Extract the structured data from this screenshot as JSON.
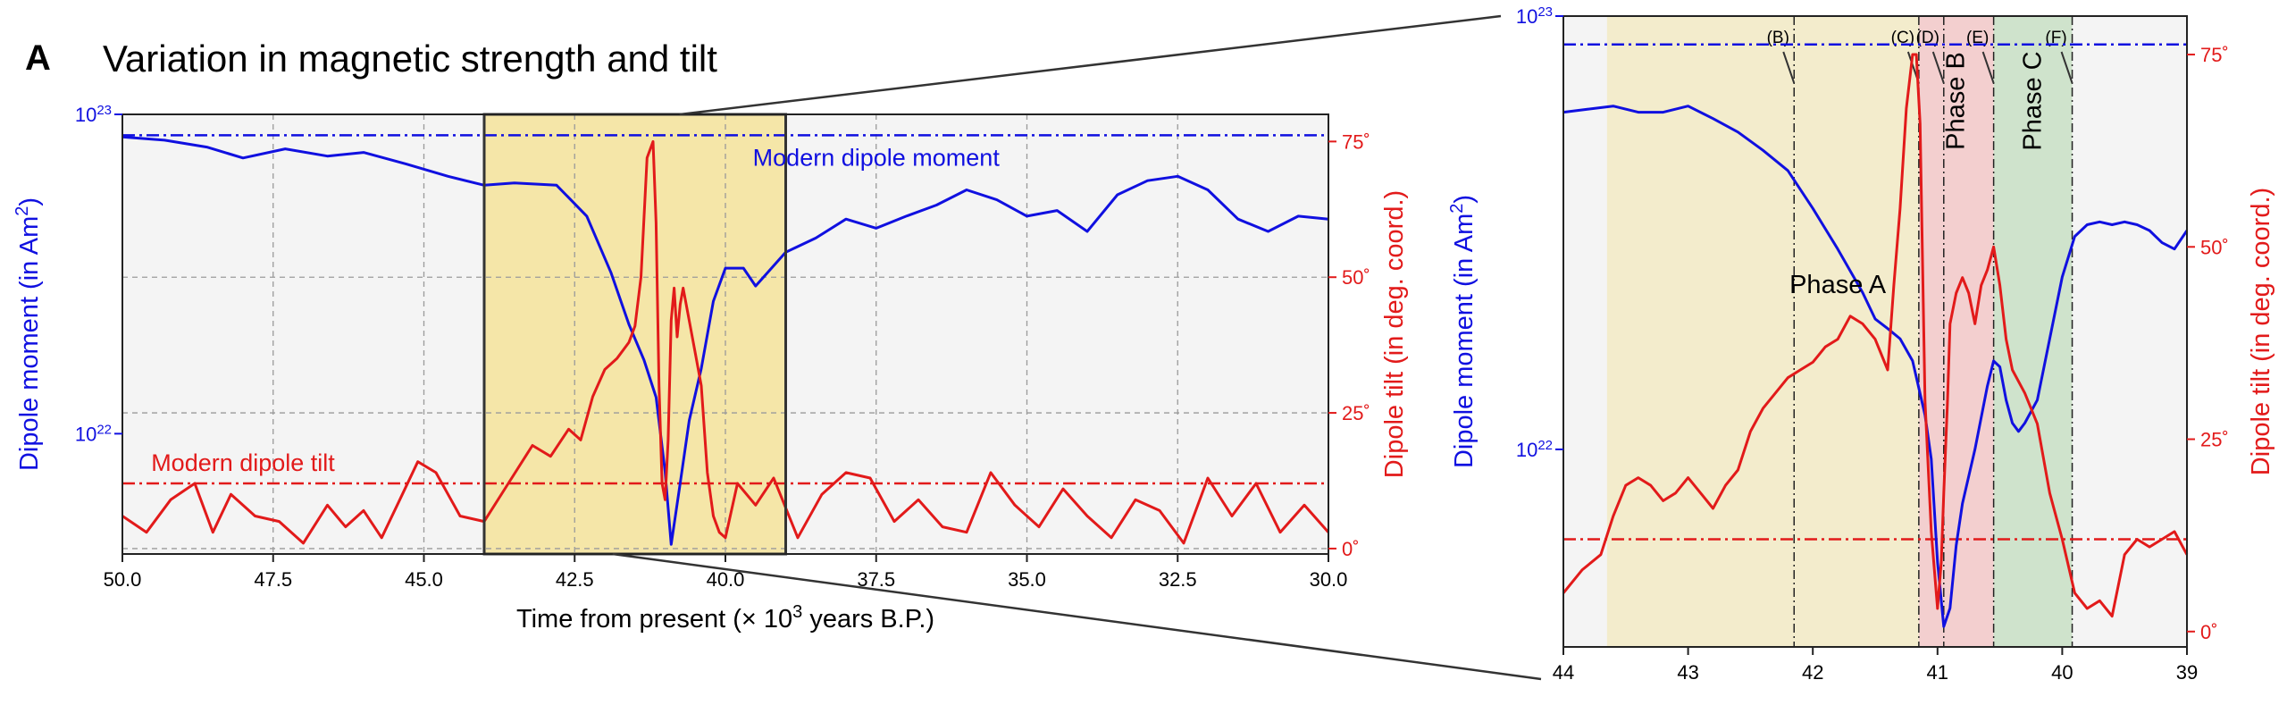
{
  "figure": {
    "panel_letter": "A",
    "title": "Variation in magnetic strength and tilt"
  },
  "colors": {
    "moment": "#1010e0",
    "tilt": "#e21a1a",
    "grid": "#9a9a9a",
    "background": "#f4f4f4",
    "highlight": "#f5e6a8",
    "phase_a": "#f3eccc",
    "phase_b": "#f3cfcf",
    "phase_c": "#cfe3cc"
  },
  "chart_data": [
    {
      "type": "line",
      "panel": "main",
      "xlabel": "Time from present (× 10",
      "xlabel_sup": "3",
      "xlabel_rest": " years B.P.)",
      "xlim": [
        50.0,
        30.0
      ],
      "xticks": [
        "50.0",
        "47.5",
        "45.0",
        "42.5",
        "40.0",
        "37.5",
        "35.0",
        "32.5",
        "30.0"
      ],
      "y_left": {
        "label": "Dipole moment (in Am",
        "label_sup": "2",
        "label_rest": ")",
        "scale": "log",
        "lim": [
          4.2e+21,
          1e+23
        ],
        "ticks": [
          {
            "base": "10",
            "exp": "22"
          },
          {
            "base": "10",
            "exp": "23"
          }
        ]
      },
      "y_right": {
        "label": "Dipole tilt (in deg. coord.)",
        "lim": [
          -1,
          80
        ],
        "ticks": [
          "0˚",
          "25˚",
          "50˚",
          "75˚"
        ]
      },
      "highlight_region": [
        44.0,
        39.0
      ],
      "annotations": [
        {
          "text": "Modern dipole moment",
          "x": 37.5,
          "series": "moment"
        },
        {
          "text": "Modern dipole tilt",
          "x": 48.0,
          "series": "tilt"
        }
      ],
      "series": [
        {
          "kind": "moment",
          "reference": 8.6e+22,
          "x": [
            50.0,
            49.3,
            48.6,
            48.0,
            47.3,
            46.6,
            46.0,
            45.3,
            44.6,
            44.0,
            43.5,
            42.8,
            42.3,
            41.9,
            41.6,
            41.35,
            41.15,
            41.0,
            40.9,
            40.75,
            40.6,
            40.4,
            40.2,
            40.0,
            39.7,
            39.5,
            39.0,
            38.5,
            38.0,
            37.5,
            37.0,
            36.5,
            36.0,
            35.5,
            35.0,
            34.5,
            34.0,
            33.5,
            33.0,
            32.5,
            32.0,
            31.5,
            31.0,
            30.5,
            30.0
          ],
          "values": [
            8.5e+22,
            8.3e+22,
            7.9e+22,
            7.3e+22,
            7.8e+22,
            7.4e+22,
            7.6e+22,
            7e+22,
            6.4e+22,
            6e+22,
            6.1e+22,
            6e+22,
            4.8e+22,
            3.2e+22,
            2.2e+22,
            1.7e+22,
            1.3e+22,
            7.6e+21,
            4.5e+21,
            7e+21,
            1.1e+22,
            1.6e+22,
            2.6e+22,
            3.3e+22,
            3.3e+22,
            2.9e+22,
            3.7e+22,
            4.1e+22,
            4.7e+22,
            4.4e+22,
            4.8e+22,
            5.2e+22,
            5.8e+22,
            5.4e+22,
            4.8e+22,
            5e+22,
            4.3e+22,
            5.6e+22,
            6.2e+22,
            6.4e+22,
            5.8e+22,
            4.7e+22,
            4.3e+22,
            4.8e+22,
            4.7e+22
          ]
        },
        {
          "kind": "tilt",
          "reference": 12,
          "x": [
            50.0,
            49.6,
            49.2,
            48.8,
            48.5,
            48.2,
            47.8,
            47.4,
            47.0,
            46.6,
            46.3,
            46.0,
            45.7,
            45.4,
            45.1,
            44.8,
            44.4,
            44.0,
            43.6,
            43.2,
            42.9,
            42.6,
            42.4,
            42.2,
            42.0,
            41.8,
            41.6,
            41.5,
            41.4,
            41.3,
            41.2,
            41.15,
            41.1,
            41.05,
            41.0,
            40.95,
            40.9,
            40.85,
            40.8,
            40.75,
            40.7,
            40.6,
            40.5,
            40.4,
            40.3,
            40.2,
            40.1,
            40.0,
            39.8,
            39.5,
            39.2,
            38.8,
            38.4,
            38.0,
            37.6,
            37.2,
            36.8,
            36.4,
            36.0,
            35.6,
            35.2,
            34.8,
            34.4,
            34.0,
            33.6,
            33.2,
            32.8,
            32.4,
            32.0,
            31.6,
            31.2,
            30.8,
            30.4,
            30.0
          ],
          "values": [
            6,
            3,
            9,
            12,
            3,
            10,
            6,
            5,
            1,
            8,
            4,
            7,
            2,
            9,
            16,
            14,
            6,
            5,
            12,
            19,
            17,
            22,
            20,
            28,
            33,
            35,
            38,
            41,
            50,
            72,
            75,
            60,
            30,
            12,
            9,
            20,
            42,
            48,
            39,
            45,
            48,
            42,
            36,
            30,
            14,
            6,
            3,
            2,
            12,
            8,
            13,
            2,
            10,
            14,
            13,
            5,
            9,
            4,
            3,
            14,
            8,
            4,
            11,
            6,
            2,
            9,
            7,
            1,
            13,
            6,
            12,
            3,
            8,
            3
          ]
        }
      ]
    },
    {
      "type": "line",
      "panel": "zoom",
      "xlim": [
        44,
        39
      ],
      "xticks": [
        "44",
        "43",
        "42",
        "41",
        "40",
        "39"
      ],
      "y_left": {
        "label": "Dipole moment (in Am",
        "label_sup": "2",
        "label_rest": ")",
        "scale": "log",
        "lim": [
          3.5e+21,
          1e+23
        ],
        "ticks": [
          {
            "base": "10",
            "exp": "22"
          },
          {
            "base": "10",
            "exp": "23"
          }
        ]
      },
      "y_right": {
        "label": "Dipole tilt (in deg. coord.)",
        "lim": [
          -2,
          80
        ],
        "ticks": [
          "0˚",
          "25˚",
          "50˚",
          "75˚"
        ]
      },
      "phases": [
        {
          "label": "Phase A",
          "from": 43.65,
          "to": 41.15,
          "color_key": "phase_a",
          "vertical": false
        },
        {
          "label": "Phase B",
          "from": 41.15,
          "to": 40.55,
          "color_key": "phase_b",
          "vertical": true
        },
        {
          "label": "Phase C",
          "from": 40.55,
          "to": 39.92,
          "color_key": "phase_c",
          "vertical": true
        }
      ],
      "markers": [
        {
          "label": "(B)",
          "x": 42.15
        },
        {
          "label": "(C)",
          "x": 41.15
        },
        {
          "label": "(D)",
          "x": 40.95
        },
        {
          "label": "(E)",
          "x": 40.55
        },
        {
          "label": "(F)",
          "x": 39.92
        }
      ],
      "series": [
        {
          "kind": "moment",
          "reference": 8.6e+22,
          "x": [
            44.0,
            43.8,
            43.6,
            43.4,
            43.2,
            43.0,
            42.8,
            42.6,
            42.4,
            42.2,
            42.0,
            41.8,
            41.6,
            41.5,
            41.4,
            41.3,
            41.2,
            41.1,
            41.05,
            41.0,
            40.95,
            40.9,
            40.85,
            40.8,
            40.7,
            40.6,
            40.55,
            40.5,
            40.45,
            40.4,
            40.35,
            40.3,
            40.2,
            40.1,
            40.0,
            39.9,
            39.8,
            39.7,
            39.6,
            39.5,
            39.4,
            39.3,
            39.2,
            39.1,
            39.0
          ],
          "values": [
            6e+22,
            6.1e+22,
            6.2e+22,
            6e+22,
            6e+22,
            6.2e+22,
            5.8e+22,
            5.4e+22,
            4.9e+22,
            4.4e+22,
            3.6e+22,
            2.9e+22,
            2.3e+22,
            2e+22,
            1.9e+22,
            1.8e+22,
            1.6e+22,
            1.2e+22,
            9.5e+21,
            5.5e+21,
            3.9e+21,
            4.3e+21,
            6e+21,
            7.5e+21,
            1e+22,
            1.4e+22,
            1.6e+22,
            1.55e+22,
            1.3e+22,
            1.15e+22,
            1.1e+22,
            1.15e+22,
            1.3e+22,
            1.8e+22,
            2.5e+22,
            3.1e+22,
            3.3e+22,
            3.35e+22,
            3.3e+22,
            3.35e+22,
            3.3e+22,
            3.2e+22,
            3e+22,
            2.9e+22,
            3.2e+22
          ]
        },
        {
          "kind": "tilt",
          "reference": 12,
          "x": [
            44.0,
            43.85,
            43.7,
            43.6,
            43.5,
            43.4,
            43.3,
            43.2,
            43.1,
            43.0,
            42.9,
            42.8,
            42.7,
            42.6,
            42.5,
            42.4,
            42.3,
            42.2,
            42.1,
            42.0,
            41.9,
            41.8,
            41.7,
            41.6,
            41.5,
            41.4,
            41.35,
            41.3,
            41.25,
            41.2,
            41.17,
            41.14,
            41.1,
            41.05,
            41.0,
            40.97,
            40.95,
            40.92,
            40.9,
            40.85,
            40.8,
            40.75,
            40.7,
            40.65,
            40.6,
            40.55,
            40.5,
            40.45,
            40.4,
            40.3,
            40.2,
            40.1,
            40.0,
            39.9,
            39.8,
            39.7,
            39.6,
            39.5,
            39.4,
            39.3,
            39.2,
            39.1,
            39.0
          ],
          "values": [
            5,
            8,
            10,
            15,
            19,
            20,
            19,
            17,
            18,
            20,
            18,
            16,
            19,
            21,
            26,
            29,
            31,
            33,
            34,
            35,
            37,
            38,
            41,
            40,
            38,
            34,
            45,
            55,
            68,
            75,
            75,
            66,
            30,
            13,
            3,
            9,
            18,
            30,
            40,
            44,
            46,
            44,
            40,
            45,
            47,
            50,
            45,
            38,
            34,
            31,
            27,
            18,
            12,
            5,
            3,
            4,
            2,
            10,
            12,
            11,
            12,
            13,
            10
          ]
        }
      ]
    }
  ]
}
